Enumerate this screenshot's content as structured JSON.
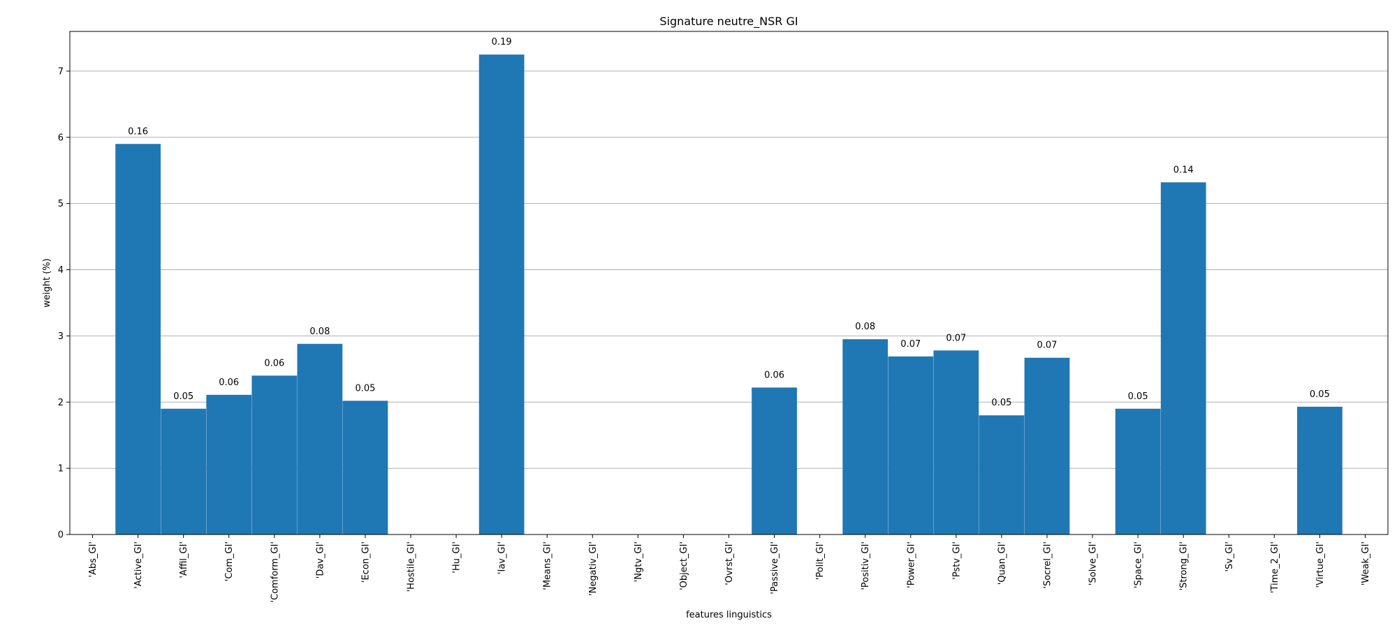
{
  "chart_data": {
    "type": "bar",
    "title": "Signature neutre_NSR GI",
    "xlabel": "features linguistics",
    "ylabel": "weight (%)",
    "ylim": [
      0,
      7.6
    ],
    "yticks": [
      0,
      1,
      2,
      3,
      4,
      5,
      6,
      7
    ],
    "grid": "y",
    "bar_color": "#1f77b4",
    "categories": [
      "'Abs_GI'",
      "'Active_GI'",
      "'Affil_GI'",
      "'Com_GI'",
      "'Comform_GI'",
      "'Dav_GI'",
      "'Econ_GI'",
      "'Hostile_GI'",
      "'Hu_GI'",
      "'Iav_GI'",
      "'Means_GI'",
      "'Negativ_GI'",
      "'Ngtv_GI'",
      "'Object_GI'",
      "'Ovrst_GI'",
      "'Passive_GI'",
      "'Polit_GI'",
      "'Positiv_GI'",
      "'Power_GI'",
      "'Pstv_GI'",
      "'Quan_GI'",
      "'Socrel_GI'",
      "'Solve_GI'",
      "'Space_GI'",
      "'Strong_GI'",
      "'Sv_GI'",
      "'Time_2_GI'",
      "'Virtue_GI'",
      "'Weak_GI'"
    ],
    "values": [
      0,
      5.9,
      1.9,
      2.11,
      2.4,
      2.88,
      2.02,
      0,
      0,
      7.25,
      0,
      0,
      0,
      0,
      0,
      2.22,
      0,
      2.95,
      2.69,
      2.78,
      1.8,
      2.67,
      0,
      1.9,
      5.32,
      0,
      0,
      1.93,
      0
    ],
    "bar_labels": [
      "",
      "0.16",
      "0.05",
      "0.06",
      "0.06",
      "0.08",
      "0.05",
      "",
      "",
      "0.19",
      "",
      "",
      "",
      "",
      "",
      "0.06",
      "",
      "0.08",
      "0.07",
      "0.07",
      "0.05",
      "0.07",
      "",
      "0.05",
      "0.14",
      "",
      "",
      "0.05",
      ""
    ]
  }
}
